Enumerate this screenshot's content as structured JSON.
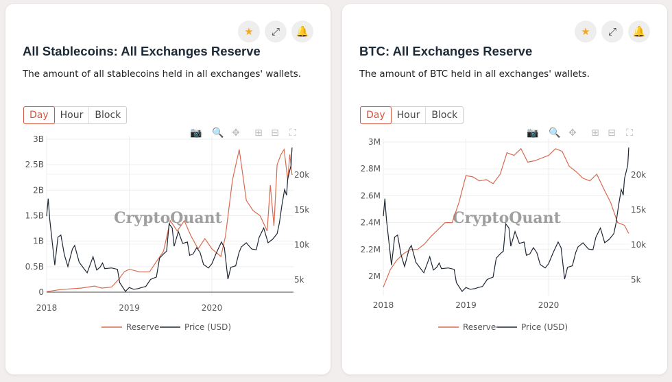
{
  "colors": {
    "reserve": "#d9694f",
    "price": "#1d2633",
    "accent": "#d2553d",
    "star": "#f5a623"
  },
  "header_icons": [
    "star-icon",
    "expand-icon",
    "bell-icon"
  ],
  "tabs": [
    "Day",
    "Hour",
    "Block"
  ],
  "active_tab": "Day",
  "watermark": "CryptoQuant",
  "chart_data": [
    {
      "type": "line",
      "title": "All Stablecoins: All Exchanges Reserve",
      "description": "The amount of all stablecoins held in all exchanges' wallets.",
      "x_ticks": [
        "2018",
        "2019",
        "2020"
      ],
      "y_ticks": [
        "0",
        "0.5B",
        "1B",
        "1.5B",
        "2B",
        "2.5B",
        "3B"
      ],
      "y2_ticks": [
        "5k",
        "10k",
        "15k",
        "20k"
      ],
      "ylim": [
        0,
        3000000000
      ],
      "y2lim_ticks": [
        5000,
        20000
      ],
      "legend": "bottom",
      "grid": true,
      "series": [
        {
          "name": "Reserve",
          "axis": "left",
          "points": [
            [
              "2018-01-01",
              10000000.0
            ],
            [
              "2018-03-01",
              50000000.0
            ],
            [
              "2018-06-01",
              80000000.0
            ],
            [
              "2018-08-01",
              120000000.0
            ],
            [
              "2018-09-01",
              80000000.0
            ],
            [
              "2018-10-15",
              100000000.0
            ],
            [
              "2018-11-15",
              250000000.0
            ],
            [
              "2018-12-10",
              400000000.0
            ],
            [
              "2019-01-01",
              450000000.0
            ],
            [
              "2019-02-15",
              400000000.0
            ],
            [
              "2019-04-01",
              400000000.0
            ],
            [
              "2019-05-01",
              600000000.0
            ],
            [
              "2019-06-01",
              800000000.0
            ],
            [
              "2019-07-01",
              1400000000.0
            ],
            [
              "2019-08-01",
              1200000000.0
            ],
            [
              "2019-09-01",
              1400000000.0
            ],
            [
              "2019-10-01",
              1100000000.0
            ],
            [
              "2019-11-01",
              850000000.0
            ],
            [
              "2019-12-01",
              1050000000.0
            ],
            [
              "2020-01-01",
              850000000.0
            ],
            [
              "2020-02-10",
              700000000.0
            ],
            [
              "2020-03-01",
              1100000000.0
            ],
            [
              "2020-04-01",
              2200000000.0
            ],
            [
              "2020-05-01",
              2800000000.0
            ],
            [
              "2020-06-01",
              1800000000.0
            ],
            [
              "2020-07-01",
              1600000000.0
            ],
            [
              "2020-08-01",
              1500000000.0
            ],
            [
              "2020-09-01",
              1200000000.0
            ],
            [
              "2020-09-15",
              2100000000.0
            ],
            [
              "2020-10-01",
              1300000000.0
            ],
            [
              "2020-10-15",
              2500000000.0
            ],
            [
              "2020-11-01",
              2700000000.0
            ],
            [
              "2020-11-15",
              2800000000.0
            ],
            [
              "2020-12-01",
              2200000000.0
            ],
            [
              "2020-12-10",
              2700000000.0
            ],
            [
              "2020-12-20",
              2300000000.0
            ]
          ]
        },
        {
          "name": "Price (USD)",
          "axis": "right",
          "points": "btc_price"
        }
      ]
    },
    {
      "type": "line",
      "title": "BTC: All Exchanges Reserve",
      "description": "The amount of BTC held in all exchanges' wallets.",
      "x_ticks": [
        "2018",
        "2019",
        "2020"
      ],
      "y_ticks": [
        "2M",
        "2.2M",
        "2.4M",
        "2.6M",
        "2.8M",
        "3M"
      ],
      "y2_ticks": [
        "5k",
        "10k",
        "15k",
        "20k"
      ],
      "ylim": [
        1860000,
        3000000
      ],
      "legend": "bottom",
      "grid": true,
      "series": [
        {
          "name": "Reserve",
          "axis": "left",
          "points": [
            [
              "2018-01-01",
              1920000.0
            ],
            [
              "2018-02-01",
              2050000.0
            ],
            [
              "2018-03-01",
              2120000.0
            ],
            [
              "2018-04-01",
              2170000.0
            ],
            [
              "2018-05-01",
              2200000.0
            ],
            [
              "2018-06-01",
              2200000.0
            ],
            [
              "2018-07-01",
              2240000.0
            ],
            [
              "2018-08-01",
              2300000.0
            ],
            [
              "2018-09-01",
              2350000.0
            ],
            [
              "2018-10-01",
              2400000.0
            ],
            [
              "2018-11-01",
              2400000.0
            ],
            [
              "2018-12-01",
              2550000.0
            ],
            [
              "2019-01-01",
              2750000.0
            ],
            [
              "2019-02-01",
              2740000.0
            ],
            [
              "2019-03-01",
              2710000.0
            ],
            [
              "2019-04-01",
              2720000.0
            ],
            [
              "2019-05-01",
              2690000.0
            ],
            [
              "2019-06-01",
              2760000.0
            ],
            [
              "2019-07-01",
              2920000.0
            ],
            [
              "2019-08-01",
              2900000.0
            ],
            [
              "2019-09-01",
              2950000.0
            ],
            [
              "2019-10-01",
              2850000.0
            ],
            [
              "2019-11-01",
              2860000.0
            ],
            [
              "2019-12-01",
              2880000.0
            ],
            [
              "2020-01-01",
              2900000.0
            ],
            [
              "2020-02-01",
              2950000.0
            ],
            [
              "2020-03-01",
              2930000.0
            ],
            [
              "2020-04-01",
              2820000.0
            ],
            [
              "2020-05-01",
              2780000.0
            ],
            [
              "2020-06-01",
              2730000.0
            ],
            [
              "2020-07-01",
              2710000.0
            ],
            [
              "2020-08-01",
              2760000.0
            ],
            [
              "2020-09-01",
              2650000.0
            ],
            [
              "2020-10-01",
              2550000.0
            ],
            [
              "2020-11-01",
              2400000.0
            ],
            [
              "2020-12-01",
              2380000.0
            ],
            [
              "2020-12-20",
              2320000.0
            ]
          ]
        },
        {
          "name": "Price (USD)",
          "axis": "right",
          "points": "btc_price"
        }
      ]
    }
  ],
  "btc_price": [
    [
      "2018-01-01",
      14000
    ],
    [
      "2018-01-08",
      16500
    ],
    [
      "2018-01-15",
      13500
    ],
    [
      "2018-02-06",
      7000
    ],
    [
      "2018-02-20",
      11000
    ],
    [
      "2018-03-05",
      11300
    ],
    [
      "2018-03-20",
      8500
    ],
    [
      "2018-04-05",
      6800
    ],
    [
      "2018-04-25",
      9300
    ],
    [
      "2018-05-05",
      9800
    ],
    [
      "2018-05-25",
      7400
    ],
    [
      "2018-06-15",
      6500
    ],
    [
      "2018-06-29",
      5900
    ],
    [
      "2018-07-25",
      8200
    ],
    [
      "2018-08-10",
      6300
    ],
    [
      "2018-08-25",
      6700
    ],
    [
      "2018-09-05",
      7300
    ],
    [
      "2018-09-15",
      6500
    ],
    [
      "2018-10-15",
      6600
    ],
    [
      "2018-11-10",
      6400
    ],
    [
      "2018-11-20",
      4500
    ],
    [
      "2018-12-15",
      3250
    ],
    [
      "2019-01-01",
      3800
    ],
    [
      "2019-01-20",
      3550
    ],
    [
      "2019-02-10",
      3650
    ],
    [
      "2019-02-25",
      3800
    ],
    [
      "2019-03-15",
      3950
    ],
    [
      "2019-04-05",
      4950
    ],
    [
      "2019-05-01",
      5300
    ],
    [
      "2019-05-15",
      8000
    ],
    [
      "2019-06-01",
      8600
    ],
    [
      "2019-06-15",
      9000
    ],
    [
      "2019-06-26",
      12900
    ],
    [
      "2019-07-10",
      12300
    ],
    [
      "2019-07-18",
      9700
    ],
    [
      "2019-08-06",
      11800
    ],
    [
      "2019-08-25",
      10100
    ],
    [
      "2019-09-15",
      10300
    ],
    [
      "2019-09-25",
      8400
    ],
    [
      "2019-10-10",
      8600
    ],
    [
      "2019-10-26",
      9500
    ],
    [
      "2019-11-10",
      8800
    ],
    [
      "2019-11-25",
      7100
    ],
    [
      "2019-12-17",
      6600
    ],
    [
      "2020-01-01",
      7200
    ],
    [
      "2020-01-20",
      8700
    ],
    [
      "2020-02-12",
      10300
    ],
    [
      "2020-02-25",
      9500
    ],
    [
      "2020-03-12",
      5000
    ],
    [
      "2020-03-25",
      6700
    ],
    [
      "2020-04-15",
      6900
    ],
    [
      "2020-04-30",
      8800
    ],
    [
      "2020-05-10",
      9600
    ],
    [
      "2020-06-01",
      10200
    ],
    [
      "2020-06-25",
      9300
    ],
    [
      "2020-07-15",
      9200
    ],
    [
      "2020-07-28",
      11000
    ],
    [
      "2020-08-17",
      12300
    ],
    [
      "2020-09-05",
      10200
    ],
    [
      "2020-09-25",
      10700
    ],
    [
      "2020-10-15",
      11500
    ],
    [
      "2020-10-25",
      13000
    ],
    [
      "2020-11-05",
      15500
    ],
    [
      "2020-11-17",
      17800
    ],
    [
      "2020-11-26",
      17000
    ],
    [
      "2020-12-01",
      19300
    ],
    [
      "2020-12-16",
      21300
    ],
    [
      "2020-12-20",
      23800
    ]
  ],
  "toolbar_icons": [
    "camera-icon",
    "zoom-icon",
    "pan-icon",
    "zoom-in-icon",
    "zoom-out-icon",
    "autoscale-icon"
  ]
}
